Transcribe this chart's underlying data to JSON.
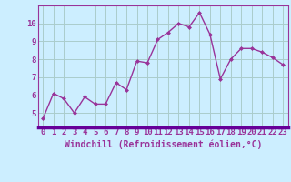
{
  "x": [
    0,
    1,
    2,
    3,
    4,
    5,
    6,
    7,
    8,
    9,
    10,
    11,
    12,
    13,
    14,
    15,
    16,
    17,
    18,
    19,
    20,
    21,
    22,
    23
  ],
  "y": [
    4.7,
    6.1,
    5.8,
    5.0,
    5.9,
    5.5,
    5.5,
    6.7,
    6.3,
    7.9,
    7.8,
    9.1,
    9.5,
    10.0,
    9.8,
    10.6,
    9.4,
    6.9,
    8.0,
    8.6,
    8.6,
    8.4,
    8.1,
    7.7
  ],
  "line_color": "#993399",
  "marker": "D",
  "marker_size": 2.0,
  "linewidth": 1.0,
  "bg_color": "#cceeff",
  "grid_color": "#aacccc",
  "xlabel": "Windchill (Refroidissement éolien,°C)",
  "ylim": [
    4.2,
    11.0
  ],
  "xlim": [
    -0.5,
    23.5
  ],
  "yticks": [
    5,
    6,
    7,
    8,
    9,
    10
  ],
  "xticks": [
    0,
    1,
    2,
    3,
    4,
    5,
    6,
    7,
    8,
    9,
    10,
    11,
    12,
    13,
    14,
    15,
    16,
    17,
    18,
    19,
    20,
    21,
    22,
    23
  ],
  "tick_label_fontsize": 6.5,
  "xlabel_fontsize": 7.0,
  "tick_color": "#993399",
  "label_color": "#993399",
  "spine_color": "#993399",
  "spine_color_bottom": "#660099"
}
